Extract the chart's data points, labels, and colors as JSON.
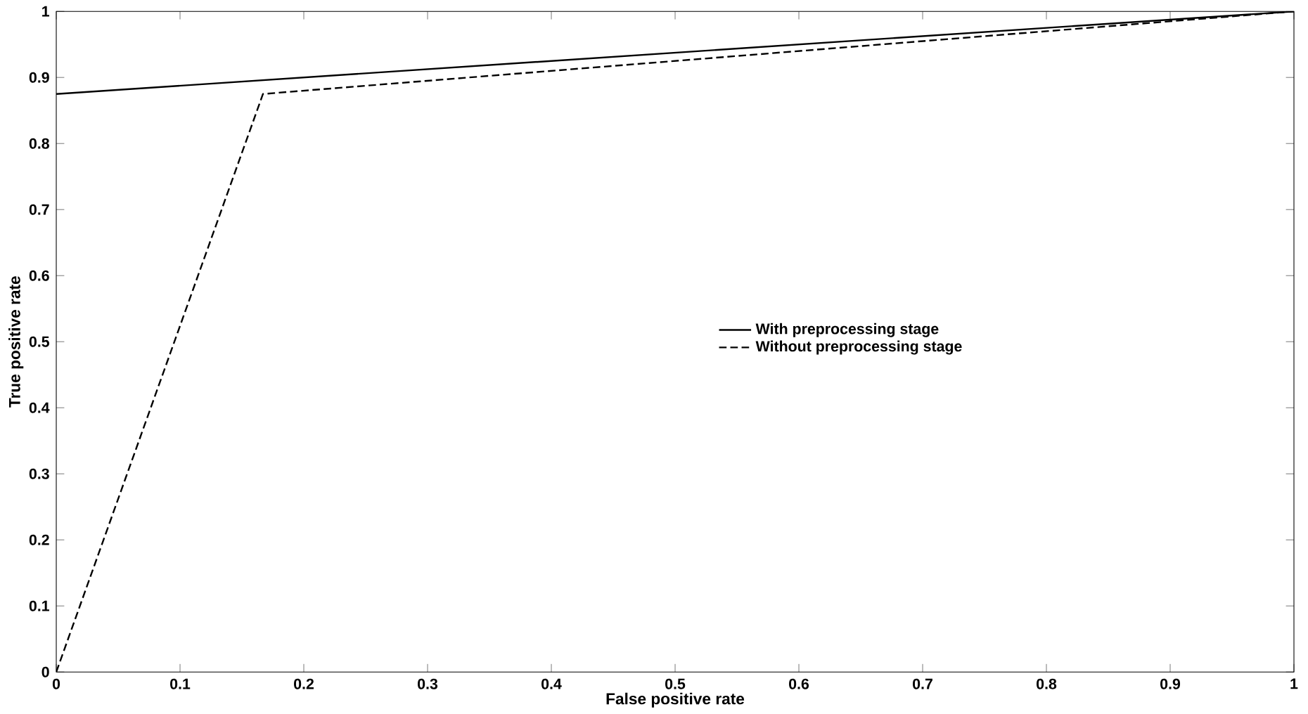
{
  "chart_data": {
    "type": "line",
    "xlabel": "False positive rate",
    "ylabel": "True positive rate",
    "xlim": [
      0,
      1
    ],
    "ylim": [
      0,
      1
    ],
    "xticks": [
      0,
      0.1,
      0.2,
      0.3,
      0.4,
      0.5,
      0.6,
      0.7,
      0.8,
      0.9,
      1
    ],
    "yticks": [
      0,
      0.1,
      0.2,
      0.3,
      0.4,
      0.5,
      0.6,
      0.7,
      0.8,
      0.9,
      1
    ],
    "grid": false,
    "legend": "right",
    "series": [
      {
        "name": "With preprocessing stage",
        "color": "#000000",
        "line_style": "solid",
        "x": [
          0,
          1
        ],
        "values": [
          0.875,
          1
        ]
      },
      {
        "name": "Without preprocessing stage",
        "color": "#000000",
        "line_style": "dashed",
        "x": [
          0,
          0.167,
          1
        ],
        "values": [
          0,
          0.875,
          1
        ]
      }
    ]
  }
}
